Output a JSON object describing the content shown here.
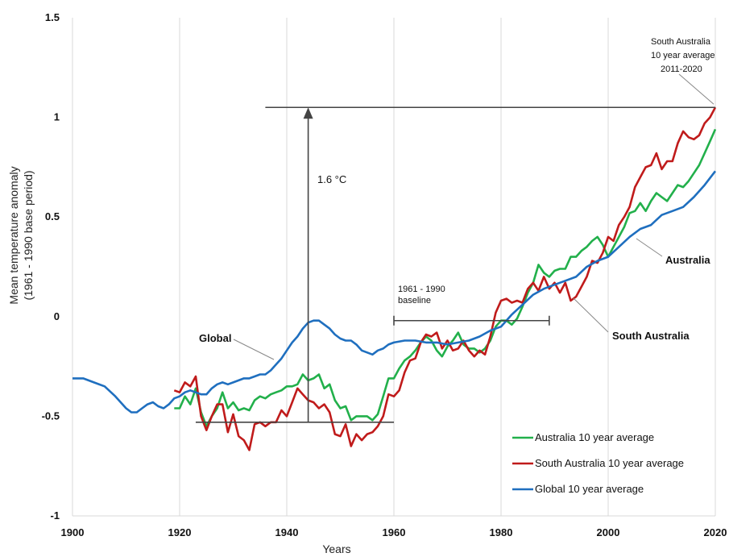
{
  "chart_data": {
    "type": "line",
    "title": "",
    "xlabel": "Years",
    "ylabel_line1": "Mean temperature anomaly",
    "ylabel_line2": "(1961 - 1990 base period)",
    "xlim": [
      1900,
      2020
    ],
    "ylim": [
      -1,
      1.5
    ],
    "x_ticks": [
      1900,
      1920,
      1940,
      1960,
      1980,
      2000,
      2020
    ],
    "y_ticks": [
      -1,
      -0.5,
      0,
      0.5,
      1,
      1.5
    ],
    "y_tick_labels": [
      "-1",
      "-0.5",
      "0",
      "0.5",
      "1",
      "1.5"
    ],
    "grid": {
      "vertical": true,
      "horizontal": false,
      "color": "#d9d9d9"
    },
    "legend_position": "bottom-right",
    "series": [
      {
        "name": "Australia 10 year average",
        "color": "#22b04b",
        "x": [
          1919,
          1920,
          1921,
          1922,
          1923,
          1924,
          1925,
          1926,
          1927,
          1928,
          1929,
          1930,
          1931,
          1932,
          1933,
          1934,
          1935,
          1936,
          1937,
          1938,
          1939,
          1940,
          1941,
          1942,
          1943,
          1944,
          1945,
          1946,
          1947,
          1948,
          1949,
          1950,
          1951,
          1952,
          1953,
          1954,
          1955,
          1956,
          1957,
          1958,
          1959,
          1960,
          1961,
          1962,
          1963,
          1964,
          1965,
          1966,
          1967,
          1968,
          1969,
          1970,
          1971,
          1972,
          1973,
          1974,
          1975,
          1976,
          1977,
          1978,
          1979,
          1980,
          1981,
          1982,
          1983,
          1984,
          1985,
          1986,
          1987,
          1988,
          1989,
          1990,
          1991,
          1992,
          1993,
          1994,
          1995,
          1996,
          1997,
          1998,
          1999,
          2000,
          2001,
          2002,
          2003,
          2004,
          2005,
          2006,
          2007,
          2008,
          2009,
          2010,
          2011,
          2012,
          2013,
          2014,
          2015,
          2016,
          2017,
          2018,
          2019,
          2020
        ],
        "y": [
          -0.46,
          -0.46,
          -0.4,
          -0.44,
          -0.36,
          -0.48,
          -0.55,
          -0.5,
          -0.46,
          -0.38,
          -0.46,
          -0.43,
          -0.47,
          -0.46,
          -0.47,
          -0.42,
          -0.4,
          -0.41,
          -0.39,
          -0.38,
          -0.37,
          -0.35,
          -0.35,
          -0.34,
          -0.29,
          -0.32,
          -0.31,
          -0.29,
          -0.36,
          -0.34,
          -0.42,
          -0.46,
          -0.45,
          -0.52,
          -0.5,
          -0.5,
          -0.5,
          -0.52,
          -0.49,
          -0.4,
          -0.31,
          -0.31,
          -0.26,
          -0.22,
          -0.2,
          -0.17,
          -0.13,
          -0.1,
          -0.12,
          -0.17,
          -0.2,
          -0.15,
          -0.12,
          -0.08,
          -0.14,
          -0.16,
          -0.16,
          -0.18,
          -0.16,
          -0.12,
          -0.05,
          -0.02,
          -0.02,
          -0.04,
          -0.01,
          0.05,
          0.12,
          0.17,
          0.26,
          0.22,
          0.2,
          0.23,
          0.24,
          0.24,
          0.3,
          0.3,
          0.33,
          0.35,
          0.38,
          0.4,
          0.36,
          0.3,
          0.35,
          0.4,
          0.45,
          0.52,
          0.53,
          0.57,
          0.53,
          0.58,
          0.62,
          0.6,
          0.58,
          0.62,
          0.66,
          0.65,
          0.68,
          0.72,
          0.76,
          0.82,
          0.88,
          0.94
        ]
      },
      {
        "name": "South Australia 10 year average",
        "color": "#c01b1b",
        "x": [
          1919,
          1920,
          1921,
          1922,
          1923,
          1924,
          1925,
          1926,
          1927,
          1928,
          1929,
          1930,
          1931,
          1932,
          1933,
          1934,
          1935,
          1936,
          1937,
          1938,
          1939,
          1940,
          1941,
          1942,
          1943,
          1944,
          1945,
          1946,
          1947,
          1948,
          1949,
          1950,
          1951,
          1952,
          1953,
          1954,
          1955,
          1956,
          1957,
          1958,
          1959,
          1960,
          1961,
          1962,
          1963,
          1964,
          1965,
          1966,
          1967,
          1968,
          1969,
          1970,
          1971,
          1972,
          1973,
          1974,
          1975,
          1976,
          1977,
          1978,
          1979,
          1980,
          1981,
          1982,
          1983,
          1984,
          1985,
          1986,
          1987,
          1988,
          1989,
          1990,
          1991,
          1992,
          1993,
          1994,
          1995,
          1996,
          1997,
          1998,
          1999,
          2000,
          2001,
          2002,
          2003,
          2004,
          2005,
          2006,
          2007,
          2008,
          2009,
          2010,
          2011,
          2012,
          2013,
          2014,
          2015,
          2016,
          2017,
          2018,
          2019,
          2020
        ],
        "y": [
          -0.37,
          -0.38,
          -0.33,
          -0.35,
          -0.3,
          -0.5,
          -0.57,
          -0.5,
          -0.44,
          -0.44,
          -0.58,
          -0.49,
          -0.6,
          -0.62,
          -0.67,
          -0.54,
          -0.53,
          -0.55,
          -0.53,
          -0.53,
          -0.47,
          -0.5,
          -0.43,
          -0.36,
          -0.39,
          -0.42,
          -0.43,
          -0.46,
          -0.44,
          -0.48,
          -0.59,
          -0.6,
          -0.54,
          -0.65,
          -0.59,
          -0.62,
          -0.59,
          -0.58,
          -0.55,
          -0.5,
          -0.39,
          -0.4,
          -0.37,
          -0.28,
          -0.22,
          -0.21,
          -0.13,
          -0.09,
          -0.1,
          -0.08,
          -0.16,
          -0.12,
          -0.17,
          -0.16,
          -0.12,
          -0.17,
          -0.2,
          -0.17,
          -0.19,
          -0.1,
          0.02,
          0.08,
          0.09,
          0.07,
          0.08,
          0.07,
          0.14,
          0.17,
          0.13,
          0.2,
          0.14,
          0.17,
          0.12,
          0.17,
          0.08,
          0.1,
          0.15,
          0.2,
          0.28,
          0.27,
          0.32,
          0.4,
          0.38,
          0.46,
          0.5,
          0.55,
          0.65,
          0.7,
          0.75,
          0.76,
          0.82,
          0.74,
          0.78,
          0.78,
          0.87,
          0.93,
          0.9,
          0.89,
          0.91,
          0.97,
          1.0,
          1.05
        ]
      },
      {
        "name": "Global 10 year average",
        "color": "#1f6fbf",
        "x": [
          1900,
          1902,
          1904,
          1906,
          1908,
          1910,
          1911,
          1912,
          1913,
          1914,
          1915,
          1916,
          1917,
          1918,
          1919,
          1920,
          1921,
          1922,
          1923,
          1924,
          1925,
          1926,
          1927,
          1928,
          1929,
          1930,
          1931,
          1932,
          1933,
          1934,
          1935,
          1936,
          1937,
          1938,
          1939,
          1940,
          1941,
          1942,
          1943,
          1944,
          1945,
          1946,
          1947,
          1948,
          1949,
          1950,
          1951,
          1952,
          1953,
          1954,
          1955,
          1956,
          1957,
          1958,
          1959,
          1960,
          1962,
          1964,
          1966,
          1968,
          1970,
          1972,
          1974,
          1976,
          1978,
          1980,
          1982,
          1984,
          1986,
          1988,
          1990,
          1992,
          1994,
          1996,
          1998,
          2000,
          2002,
          2004,
          2006,
          2008,
          2010,
          2012,
          2014,
          2016,
          2018,
          2020
        ],
        "y": [
          -0.31,
          -0.31,
          -0.33,
          -0.35,
          -0.4,
          -0.46,
          -0.48,
          -0.48,
          -0.46,
          -0.44,
          -0.43,
          -0.45,
          -0.46,
          -0.44,
          -0.41,
          -0.4,
          -0.38,
          -0.37,
          -0.38,
          -0.39,
          -0.39,
          -0.36,
          -0.34,
          -0.33,
          -0.34,
          -0.33,
          -0.32,
          -0.31,
          -0.31,
          -0.3,
          -0.29,
          -0.29,
          -0.27,
          -0.24,
          -0.21,
          -0.17,
          -0.13,
          -0.1,
          -0.06,
          -0.03,
          -0.02,
          -0.02,
          -0.04,
          -0.06,
          -0.09,
          -0.11,
          -0.12,
          -0.12,
          -0.14,
          -0.17,
          -0.18,
          -0.19,
          -0.17,
          -0.16,
          -0.14,
          -0.13,
          -0.12,
          -0.12,
          -0.13,
          -0.13,
          -0.14,
          -0.13,
          -0.12,
          -0.1,
          -0.07,
          -0.05,
          0.01,
          0.06,
          0.11,
          0.14,
          0.16,
          0.18,
          0.2,
          0.25,
          0.28,
          0.3,
          0.35,
          0.4,
          0.44,
          0.46,
          0.51,
          0.53,
          0.55,
          0.6,
          0.66,
          0.73
        ]
      }
    ],
    "annotations": {
      "arrow_label": "1.6 °C",
      "arrow_from_y": -0.53,
      "arrow_to_y": 1.05,
      "arrow_x": 1944,
      "bottom_ref_line": {
        "x1": 1923,
        "x2": 1960,
        "y": -0.53
      },
      "top_ref_line": {
        "x1": 1936,
        "x2": 2020,
        "y": 1.05
      },
      "baseline_bracket": {
        "x1": 1960,
        "x2": 1989,
        "y": -0.02
      },
      "baseline_label_line1": "1961 - 1990",
      "baseline_label_line2": "baseline",
      "global_label": "Global",
      "australia_label": "Australia",
      "south_australia_label": "South Australia",
      "sa_note_line1": "South Australia",
      "sa_note_line2": "10 year average",
      "sa_note_line3": "2011-2020"
    }
  }
}
